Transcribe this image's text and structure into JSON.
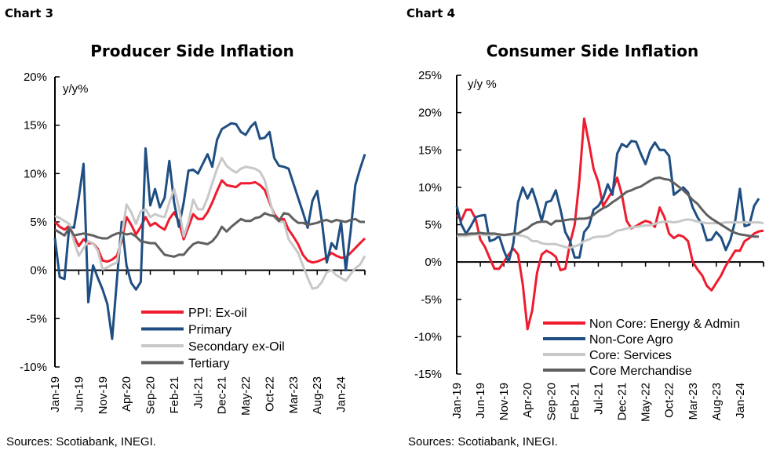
{
  "chart_data": [
    {
      "type": "line",
      "header": "Chart 3",
      "title": "Producer Side Inflation",
      "ylabel": "y/y%",
      "source": "Sources: Scotiabank, INEGI.",
      "ylim": [
        -10,
        20
      ],
      "yticks": [
        "20%",
        "15%",
        "10%",
        "5%",
        "0%",
        "-5%",
        "-10%"
      ],
      "ytick_values": [
        20,
        15,
        10,
        5,
        0,
        -5,
        -10
      ],
      "x_start": "Jan-19",
      "xticks": [
        "Jan-19",
        "Jun-19",
        "Nov-19",
        "Apr-20",
        "Sep-20",
        "Feb-21",
        "Jul-21",
        "Dec-21",
        "May-22",
        "Oct-22",
        "Mar-23",
        "Aug-23",
        "Jan-24"
      ],
      "legend": "bottom-center",
      "grid": false,
      "series": [
        {
          "name": "PPI: Ex-oil",
          "color": "#ee1c2e",
          "values": [
            5.0,
            4.5,
            4.2,
            4.6,
            3.5,
            2.5,
            3.2,
            2.8,
            2.8,
            2.2,
            1.0,
            0.9,
            1.1,
            1.5,
            3.0,
            5.5,
            4.7,
            3.7,
            4.5,
            5.5,
            4.6,
            4.9,
            4.5,
            4.2,
            5.3,
            6.0,
            5.0,
            3.2,
            4.5,
            5.8,
            5.3,
            5.3,
            6.0,
            7.0,
            8.2,
            9.3,
            8.8,
            8.7,
            8.6,
            9.0,
            9.0,
            9.0,
            9.1,
            8.8,
            8.3,
            7.0,
            5.8,
            5.2,
            5.3,
            4.2,
            3.5,
            2.7,
            1.6,
            1.0,
            0.8,
            0.9,
            1.1,
            1.3,
            1.8,
            1.5,
            1.3,
            1.3,
            1.8,
            2.3,
            2.8,
            3.3
          ]
        },
        {
          "name": "Primary",
          "color": "#1f4e82",
          "values": [
            3.3,
            -0.7,
            -0.9,
            4.5,
            4.4,
            7.5,
            11.0,
            -3.3,
            0.5,
            -0.8,
            -2.0,
            -3.5,
            -7.1,
            -1.0,
            5.0,
            0.5,
            -1.3,
            -2.0,
            -1.2,
            12.6,
            6.7,
            8.4,
            6.5,
            7.5,
            11.3,
            7.0,
            4.5,
            7.0,
            10.3,
            10.4,
            10.0,
            11.0,
            12.0,
            10.7,
            13.5,
            14.6,
            14.9,
            15.2,
            15.1,
            14.3,
            14.0,
            14.8,
            15.3,
            13.6,
            13.7,
            14.3,
            11.6,
            10.8,
            10.7,
            10.5,
            9.0,
            7.5,
            6.0,
            4.4,
            7.2,
            8.2,
            5.0,
            0.8,
            2.8,
            2.2,
            5.0,
            0.0,
            4.0,
            8.8,
            10.5,
            12.0
          ]
        },
        {
          "name": "Secondary ex-Oil",
          "color": "#c8c8c8",
          "values": [
            5.6,
            5.4,
            5.1,
            4.8,
            3.0,
            1.5,
            2.3,
            3.0,
            2.8,
            2.0,
            0.1,
            0.3,
            0.6,
            0.8,
            3.5,
            6.8,
            6.0,
            4.8,
            6.1,
            6.3,
            5.5,
            5.8,
            5.6,
            5.5,
            7.0,
            8.4,
            6.5,
            3.5,
            5.0,
            7.3,
            6.3,
            6.3,
            7.5,
            9.0,
            10.5,
            11.6,
            10.8,
            10.4,
            10.1,
            10.5,
            10.7,
            10.6,
            10.5,
            10.2,
            9.3,
            7.3,
            5.5,
            5.0,
            5.0,
            3.2,
            2.5,
            1.8,
            0.5,
            -0.8,
            -1.9,
            -1.8,
            -1.2,
            -0.2,
            0.0,
            -0.5,
            -0.8,
            -1.1,
            -0.4,
            0.2,
            0.6,
            1.5
          ]
        },
        {
          "name": "Tertiary",
          "color": "#606060",
          "values": [
            4.2,
            3.9,
            3.6,
            4.4,
            3.6,
            3.7,
            3.8,
            3.7,
            3.6,
            3.4,
            3.3,
            3.3,
            3.6,
            3.8,
            3.9,
            3.7,
            3.8,
            3.5,
            3.0,
            2.9,
            2.8,
            2.8,
            2.2,
            1.6,
            1.5,
            1.4,
            1.6,
            1.6,
            2.2,
            2.7,
            2.9,
            2.8,
            2.7,
            3.0,
            3.6,
            4.5,
            4.0,
            4.5,
            4.9,
            5.3,
            5.1,
            5.1,
            5.4,
            5.5,
            5.9,
            5.7,
            5.6,
            5.1,
            5.9,
            5.8,
            5.3,
            4.9,
            4.9,
            4.7,
            4.8,
            4.9,
            5.1,
            5.2,
            5.0,
            5.2,
            5.1,
            5.0,
            5.2,
            5.3,
            5.0,
            5.0
          ]
        }
      ]
    },
    {
      "type": "line",
      "header": "Chart 4",
      "title": "Consumer Side Inflation",
      "ylabel": "y/y  %",
      "source": "Sources: Scotiabank, INEGI.",
      "ylim": [
        -15,
        25
      ],
      "yticks": [
        "25%",
        "20%",
        "15%",
        "10%",
        "5%",
        "0%",
        "-5%",
        "-10%",
        "-15%"
      ],
      "ytick_values": [
        25,
        20,
        15,
        10,
        5,
        0,
        -5,
        -10,
        -15
      ],
      "x_start": "Jan-19",
      "xticks": [
        "Jan-19",
        "Jun-19",
        "Nov-19",
        "Apr-20",
        "Sep-20",
        "Feb-21",
        "Jul-21",
        "Dec-21",
        "May-22",
        "Oct-22",
        "Mar-23",
        "Aug-23",
        "Jan-24"
      ],
      "legend": "bottom-right",
      "grid": false,
      "series": [
        {
          "name": "Non Core: Energy & Admin",
          "color": "#ee1c2e",
          "values": [
            6.3,
            5.6,
            7.0,
            7.0,
            5.8,
            3.0,
            2.0,
            0.5,
            -0.9,
            -0.9,
            0.0,
            1.0,
            1.8,
            1.0,
            -3.0,
            -9.0,
            -6.5,
            -1.5,
            1.0,
            1.5,
            1.2,
            0.7,
            -1.1,
            -0.9,
            2.5,
            5.0,
            11.0,
            19.2,
            16.0,
            12.5,
            10.7,
            7.5,
            8.5,
            9.5,
            11.3,
            9.0,
            5.5,
            4.5,
            4.8,
            5.2,
            5.5,
            5.3,
            4.7,
            7.3,
            6.0,
            3.8,
            3.2,
            3.6,
            3.4,
            2.8,
            0.0,
            -1.0,
            -1.8,
            -3.2,
            -3.8,
            -2.8,
            -1.8,
            -0.5,
            0.5,
            1.5,
            1.5,
            2.8,
            3.2,
            3.8,
            4.1,
            4.2
          ]
        },
        {
          "name": "Non-Core Agro",
          "color": "#1f4e82",
          "values": [
            7.5,
            5.0,
            3.8,
            4.8,
            6.0,
            6.2,
            6.3,
            2.8,
            3.0,
            3.5,
            1.5,
            0.0,
            2.5,
            8.0,
            10.0,
            8.5,
            9.8,
            7.8,
            5.5,
            8.0,
            8.2,
            9.6,
            7.0,
            4.0,
            2.8,
            0.6,
            0.6,
            4.0,
            4.8,
            7.0,
            7.5,
            8.5,
            10.4,
            9.0,
            14.5,
            15.8,
            15.4,
            16.2,
            16.1,
            14.5,
            13.1,
            15.0,
            16.0,
            15.0,
            15.0,
            14.2,
            9.0,
            9.5,
            10.0,
            9.3,
            7.3,
            6.0,
            5.0,
            2.9,
            3.0,
            4.0,
            3.3,
            1.6,
            3.0,
            5.5,
            9.8,
            4.8,
            5.0,
            7.5,
            8.5
          ]
        },
        {
          "name": "Core: Services",
          "color": "#c8c8c8",
          "values": [
            3.5,
            3.5,
            3.5,
            3.6,
            3.7,
            3.7,
            3.6,
            3.6,
            3.7,
            3.6,
            3.6,
            3.6,
            3.6,
            3.6,
            3.5,
            3.3,
            2.8,
            2.8,
            2.5,
            2.4,
            2.4,
            2.4,
            2.2,
            2.0,
            1.9,
            2.1,
            2.3,
            2.8,
            3.0,
            3.3,
            3.4,
            3.4,
            3.5,
            3.8,
            4.2,
            4.3,
            4.5,
            4.6,
            4.7,
            4.8,
            4.9,
            4.9,
            5.1,
            5.3,
            5.4,
            5.4,
            5.3,
            5.4,
            5.6,
            5.7,
            5.6,
            5.4,
            5.3,
            5.2,
            5.2,
            5.2,
            5.2,
            5.3,
            5.3,
            5.3,
            5.3,
            5.3,
            5.3,
            5.3,
            5.3,
            5.2
          ]
        },
        {
          "name": "Core Merchandise",
          "color": "#606060",
          "values": [
            3.7,
            3.7,
            3.7,
            3.8,
            3.8,
            3.9,
            3.8,
            3.8,
            3.8,
            3.7,
            3.6,
            3.7,
            3.8,
            3.8,
            4.2,
            4.5,
            5.0,
            5.3,
            5.4,
            5.4,
            5.0,
            5.5,
            5.5,
            5.6,
            5.7,
            5.7,
            5.8,
            5.8,
            5.9,
            6.3,
            6.8,
            7.2,
            7.5,
            8.0,
            8.4,
            8.9,
            9.4,
            9.6,
            9.9,
            10.1,
            10.5,
            10.9,
            11.2,
            11.3,
            11.1,
            11.0,
            10.6,
            10.1,
            9.6,
            9.0,
            8.3,
            7.8,
            7.0,
            6.3,
            5.8,
            5.4,
            5.0,
            4.6,
            4.2,
            3.9,
            3.7,
            3.6,
            3.5,
            3.4,
            3.4
          ]
        }
      ]
    }
  ]
}
